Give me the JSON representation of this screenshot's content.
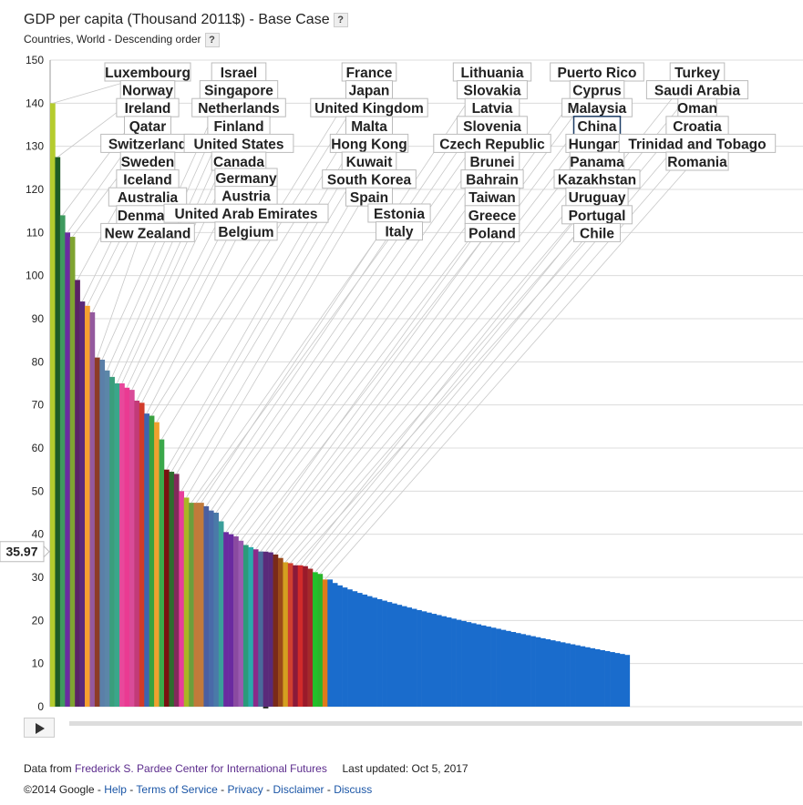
{
  "header": {
    "title": "GDP per capita (Thousand 2011$) - Base Case",
    "subtitle": "Countries, World - Descending order",
    "help_label": "?"
  },
  "chart_data": {
    "type": "bar",
    "ylim": [
      0,
      150
    ],
    "yticks": [
      "0",
      "10",
      "20",
      "30",
      "40",
      "50",
      "60",
      "70",
      "80",
      "90",
      "100",
      "110",
      "120",
      "130",
      "140",
      "150"
    ],
    "highlight_value": "35.97",
    "grid": true,
    "categories": [
      "Luxembourg",
      "Norway",
      "Ireland",
      "Qatar",
      "Switzerland",
      "Sweden",
      "Iceland",
      "Australia",
      "Denmark",
      "New Zealand",
      "Israel",
      "Singapore",
      "Netherlands",
      "Finland",
      "United States",
      "Canada",
      "Germany",
      "Austria",
      "United Arab Emirates",
      "Belgium",
      "France",
      "Japan",
      "United Kingdom",
      "Malta",
      "Hong Kong",
      "Kuwait",
      "South Korea",
      "Spain",
      "Estonia",
      "Italy",
      "Lithuania",
      "Slovakia",
      "Latvia",
      "Slovenia",
      "Czech Republic",
      "Brunei",
      "Bahrain",
      "Taiwan",
      "Greece",
      "Poland",
      "Puerto Rico",
      "Cyprus",
      "Malaysia",
      "China",
      "Hungary",
      "Panama",
      "Kazakhstan",
      "Uruguay",
      "Portugal",
      "Chile",
      "Turkey",
      "Saudi Arabia",
      "Oman",
      "Croatia",
      "Trinidad and Tobago",
      "Romania"
    ],
    "values": [
      140,
      127.5,
      114,
      110,
      109,
      99,
      94,
      93,
      91.5,
      81,
      80.5,
      78,
      76.5,
      75,
      75,
      74,
      73.5,
      71,
      70.5,
      68,
      67.5,
      66,
      62,
      55,
      54.5,
      54,
      50,
      48.5,
      47.3,
      47.3,
      47.3,
      46.5,
      45.5,
      45,
      43,
      40.5,
      40,
      39.5,
      38.5,
      37.5,
      37,
      36.5,
      36,
      35.97,
      35.8,
      35.3,
      34.5,
      33.5,
      33.3,
      32.8,
      32.8,
      32.6,
      32,
      31.2,
      30.8,
      29.5
    ],
    "colors": [
      "#b5cc2e",
      "#1e5b25",
      "#3e9a5e",
      "#6a2ca0",
      "#7fa331",
      "#5a2265",
      "#5a2a7a",
      "#f5a02f",
      "#94599e",
      "#8c3c27",
      "#5b7fa8",
      "#5b86a8",
      "#3a9e7c",
      "#3aa68a",
      "#e8489b",
      "#ea3a92",
      "#d94b98",
      "#c23b78",
      "#d23b2a",
      "#3f64b0",
      "#39a141",
      "#f0a12e",
      "#3aa84a",
      "#7a1010",
      "#2e6d2e",
      "#822a5c",
      "#e83e9d",
      "#aab526",
      "#6b9e3c",
      "#c17a3a",
      "#c17a3a",
      "#4a5fa0",
      "#4a6aa8",
      "#4a7aa8",
      "#3a9e9a",
      "#6a2aa0",
      "#6a2aa0",
      "#8a4aa0",
      "#9a5ab0",
      "#2a9a7a",
      "#2aaaaa",
      "#8a2a8a",
      "#4a6a9a",
      "#5a2a7a",
      "#5a2a7a",
      "#7a2a1a",
      "#9a4a1a",
      "#d4a020",
      "#d04030",
      "#8a1a3a",
      "#d02a2a",
      "#9a1a2a",
      "#a52a2a",
      "#22c02a",
      "#2ab52a",
      "#e07a1a"
    ],
    "tail_start": 29.5,
    "tail_end": 12,
    "tail_count": 61,
    "tail_color": "#1a6ccc"
  },
  "controls": {
    "play_icon": "play-icon"
  },
  "footer": {
    "data_from_prefix": "Data from",
    "source_link": "Frederick S. Pardee Center for International Futures",
    "last_updated": "Last updated: Oct 5, 2017",
    "copyright": "©2014 Google",
    "dash": "-",
    "links": [
      "Help",
      "Terms of Service",
      "Privacy",
      "Disclaimer",
      "Discuss"
    ]
  }
}
